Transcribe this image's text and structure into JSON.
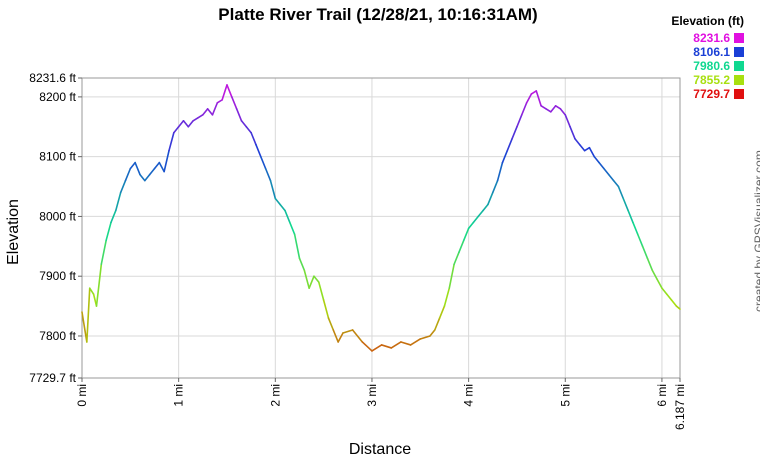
{
  "chart_data": {
    "type": "line",
    "title": "Platte River Trail (12/28/21, 10:16:31AM)",
    "xlabel": "Distance",
    "ylabel": "Elevation",
    "xlim": [
      0,
      6.187
    ],
    "ylim": [
      7729.7,
      8231.6
    ],
    "x_ticks": [
      "0 mi",
      "1 mi",
      "2 mi",
      "3 mi",
      "4 mi",
      "5 mi",
      "6 mi",
      "6.187 mi"
    ],
    "x_tick_values": [
      0,
      1,
      2,
      3,
      4,
      5,
      6,
      6.187
    ],
    "y_ticks": [
      "7729.7 ft",
      "7800 ft",
      "7900 ft",
      "8000 ft",
      "8100 ft",
      "8200 ft",
      "8231.6 ft"
    ],
    "y_tick_values": [
      7729.7,
      7800,
      7900,
      8000,
      8100,
      8200,
      8231.6
    ],
    "grid": true,
    "legend": {
      "title": "Elevation (ft)",
      "placement": "top-right",
      "entries": [
        {
          "label": "8231.6",
          "color": "#e010e0"
        },
        {
          "label": "8106.1",
          "color": "#1a3fd6"
        },
        {
          "label": "7980.6",
          "color": "#10d890"
        },
        {
          "label": "7855.2",
          "color": "#a8e010"
        },
        {
          "label": "7729.7",
          "color": "#e01010"
        }
      ]
    },
    "series": [
      {
        "x": [
          0,
          0.05,
          0.08,
          0.12,
          0.15,
          0.2,
          0.25,
          0.3,
          0.35,
          0.4,
          0.45,
          0.5,
          0.55,
          0.6,
          0.65,
          0.7,
          0.75,
          0.8,
          0.85,
          0.9,
          0.95,
          1.0,
          1.05,
          1.1,
          1.15,
          1.2,
          1.25,
          1.3,
          1.35,
          1.4,
          1.45,
          1.5,
          1.55,
          1.6,
          1.65,
          1.7,
          1.75,
          1.8,
          1.85,
          1.9,
          1.95,
          2.0,
          2.05,
          2.1,
          2.15,
          2.2,
          2.25,
          2.3,
          2.35,
          2.4,
          2.45,
          2.5,
          2.55,
          2.6,
          2.65,
          2.7,
          2.8,
          2.9,
          3.0,
          3.1,
          3.2,
          3.3,
          3.4,
          3.5,
          3.6,
          3.65,
          3.7,
          3.75,
          3.8,
          3.85,
          3.9,
          3.95,
          4.0,
          4.05,
          4.1,
          4.15,
          4.2,
          4.25,
          4.3,
          4.35,
          4.4,
          4.45,
          4.5,
          4.55,
          4.6,
          4.65,
          4.7,
          4.75,
          4.8,
          4.85,
          4.9,
          4.95,
          5.0,
          5.05,
          5.1,
          5.15,
          5.2,
          5.25,
          5.3,
          5.35,
          5.4,
          5.45,
          5.5,
          5.55,
          5.6,
          5.65,
          5.7,
          5.75,
          5.8,
          5.85,
          5.9,
          5.95,
          6.0,
          6.05,
          6.1,
          6.15,
          6.187
        ],
        "y": [
          7840,
          7790,
          7880,
          7870,
          7850,
          7920,
          7960,
          7990,
          8010,
          8040,
          8060,
          8080,
          8090,
          8070,
          8060,
          8070,
          8080,
          8090,
          8075,
          8110,
          8140,
          8150,
          8160,
          8150,
          8160,
          8165,
          8170,
          8180,
          8170,
          8190,
          8195,
          8220,
          8200,
          8180,
          8160,
          8150,
          8140,
          8120,
          8100,
          8080,
          8060,
          8030,
          8020,
          8010,
          7990,
          7970,
          7930,
          7910,
          7880,
          7900,
          7890,
          7860,
          7830,
          7810,
          7790,
          7805,
          7810,
          7790,
          7775,
          7785,
          7780,
          7790,
          7785,
          7795,
          7800,
          7810,
          7830,
          7850,
          7880,
          7920,
          7940,
          7960,
          7980,
          7990,
          8000,
          8010,
          8020,
          8040,
          8060,
          8090,
          8110,
          8130,
          8150,
          8170,
          8190,
          8205,
          8210,
          8185,
          8180,
          8175,
          8185,
          8180,
          8170,
          8150,
          8130,
          8120,
          8110,
          8115,
          8100,
          8090,
          8080,
          8070,
          8060,
          8050,
          8030,
          8010,
          7990,
          7970,
          7950,
          7930,
          7910,
          7895,
          7880,
          7870,
          7860,
          7850,
          7845
        ]
      }
    ]
  },
  "credit": "created by GPSVisualizer.com"
}
